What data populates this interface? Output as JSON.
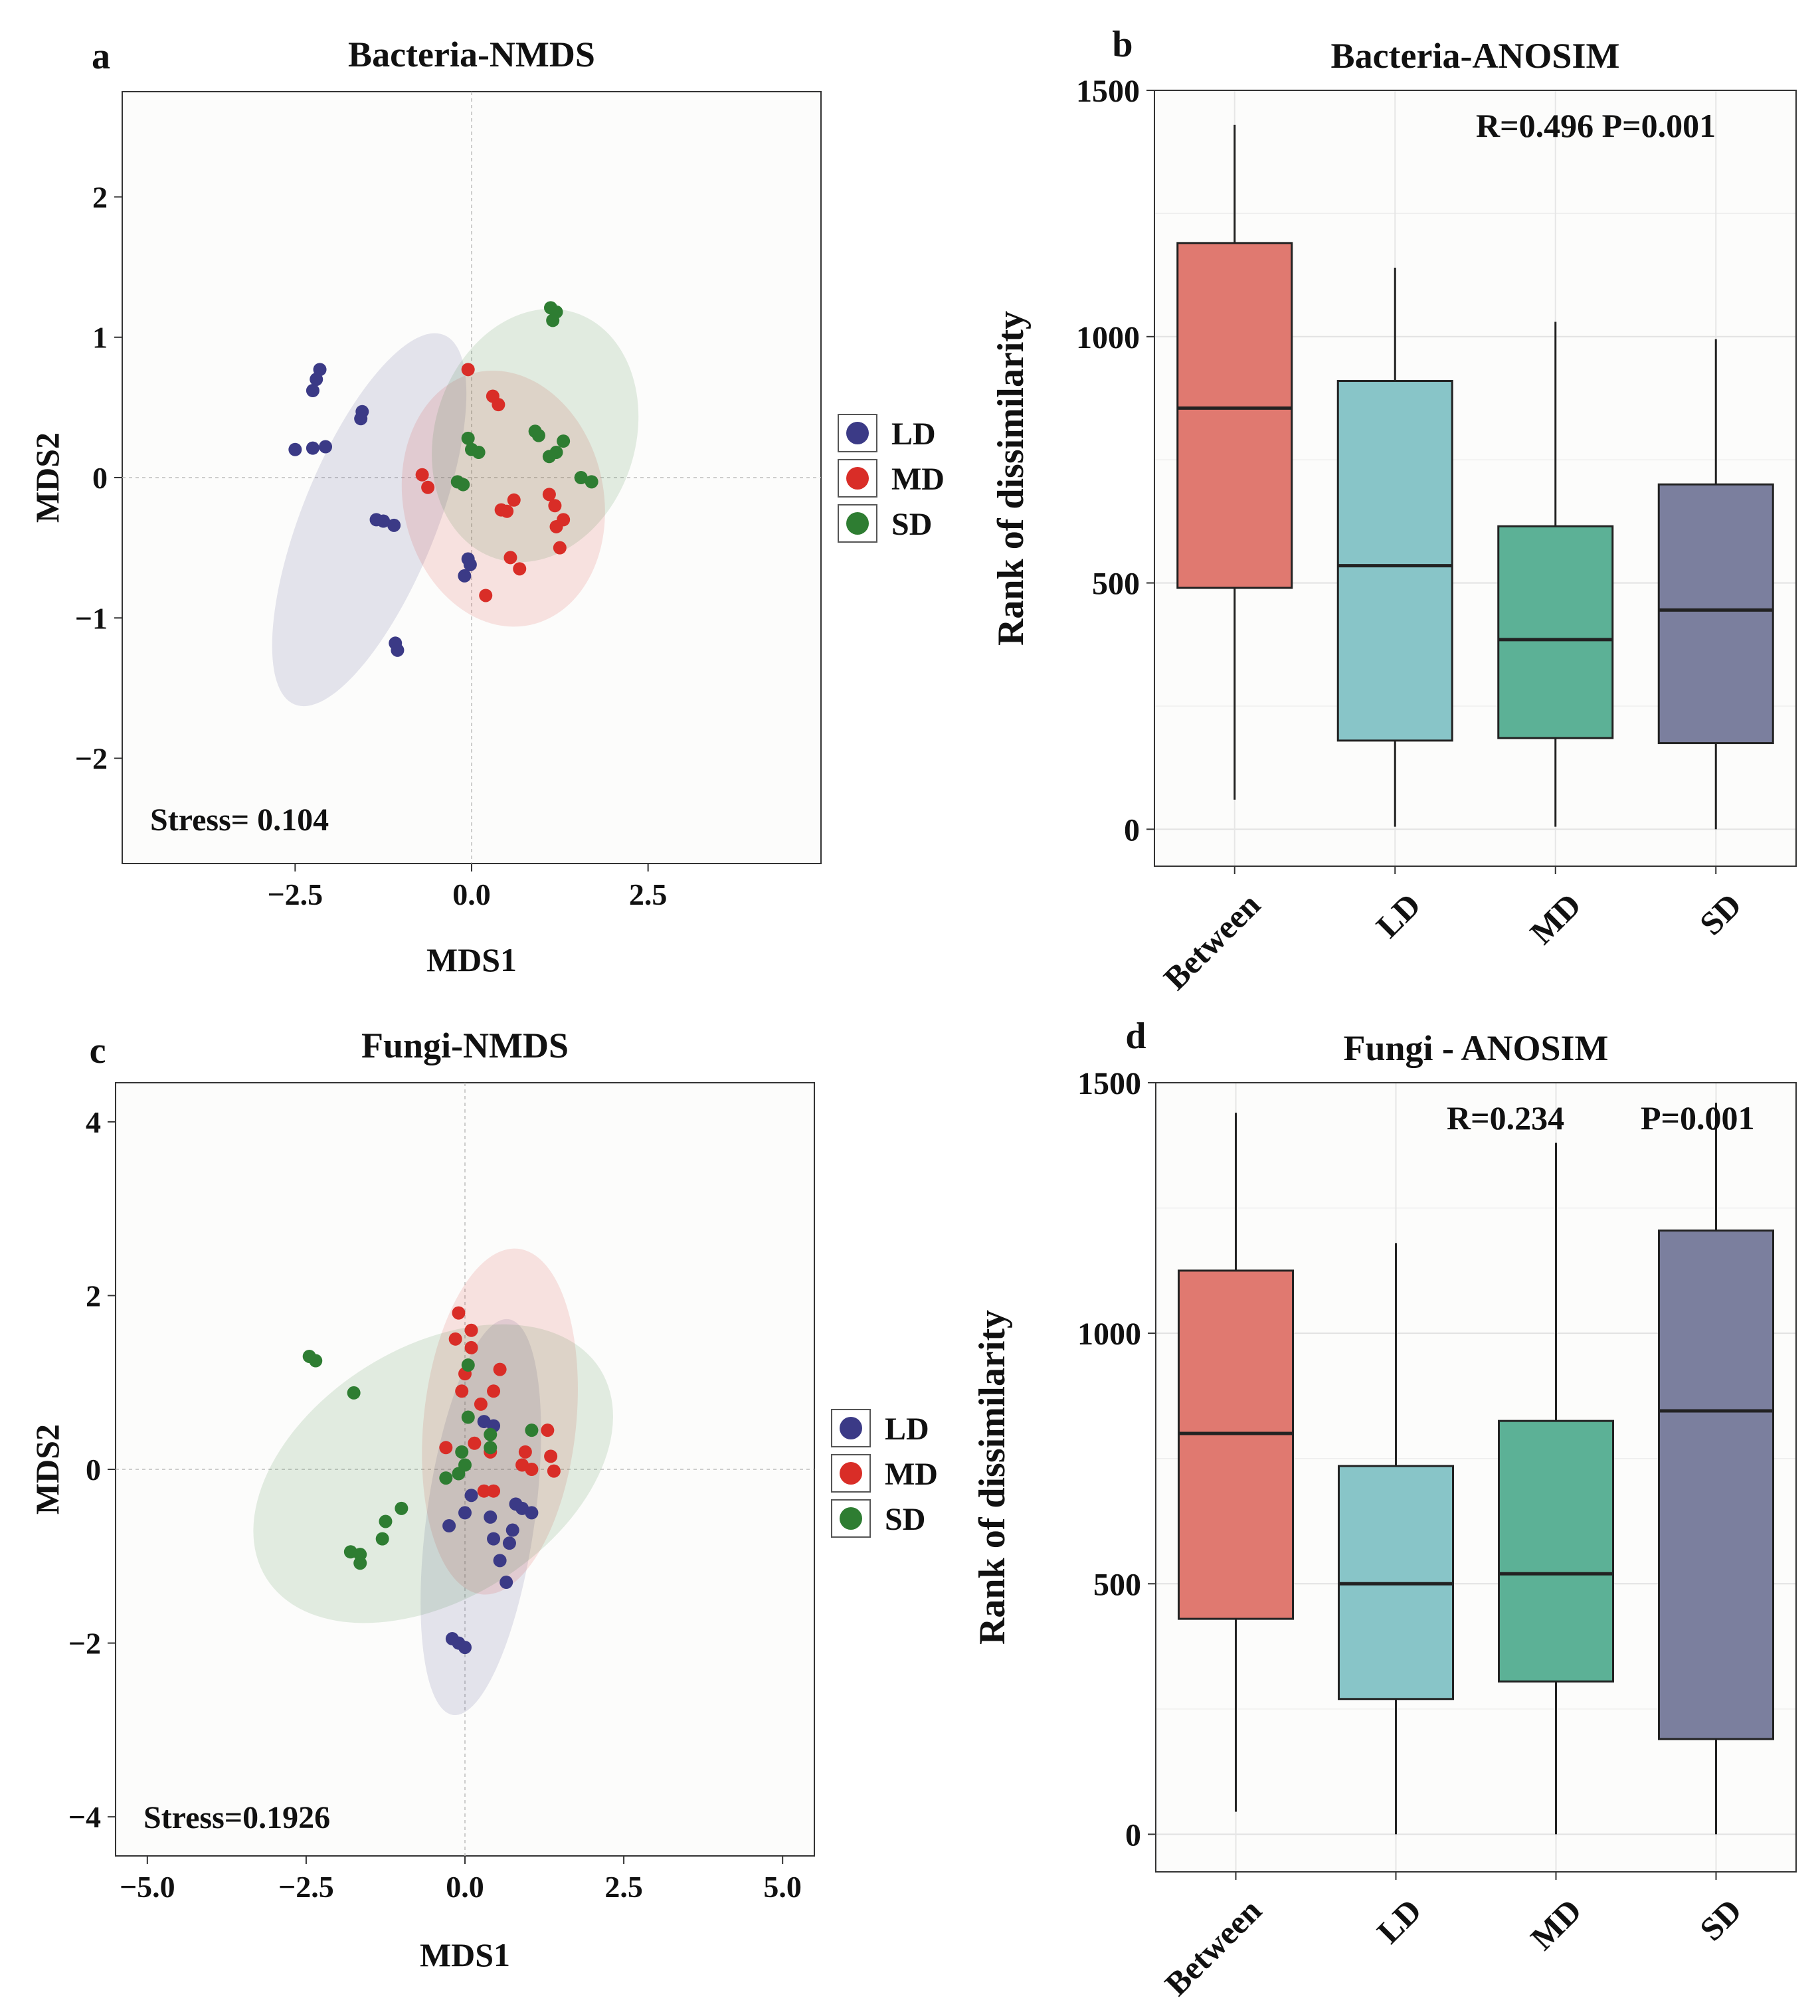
{
  "chart_data": [
    {
      "panel": "a",
      "type": "scatter",
      "title": "Bacteria-NMDS",
      "xlabel": "MDS1",
      "ylabel": "MDS2",
      "xlim": [
        -4.95,
        4.95
      ],
      "ylim": [
        -2.75,
        2.75
      ],
      "xticks": [
        "-2.5",
        "0.0",
        "2.5"
      ],
      "yticks": [
        "-2",
        "-1",
        "0",
        "1",
        "2"
      ],
      "annotation": "Stress= 0.104",
      "grid": false,
      "legend": "right",
      "series": [
        {
          "name": "LD",
          "color": "#3b3a86",
          "points": [
            [
              -2.15,
              0.77
            ],
            [
              -2.2,
              0.7
            ],
            [
              -2.25,
              0.62
            ],
            [
              -1.55,
              0.47
            ],
            [
              -1.57,
              0.42
            ],
            [
              -2.25,
              0.21
            ],
            [
              -2.5,
              0.2
            ],
            [
              -2.07,
              0.22
            ],
            [
              -1.35,
              -0.3
            ],
            [
              -1.25,
              -0.31
            ],
            [
              -1.1,
              -0.34
            ],
            [
              -1.08,
              -1.18
            ],
            [
              -1.05,
              -1.23
            ],
            [
              -0.05,
              -0.58
            ],
            [
              -0.1,
              -0.7
            ],
            [
              -0.02,
              -0.62
            ]
          ]
        },
        {
          "name": "MD",
          "color": "#d92d27",
          "points": [
            [
              -0.05,
              0.77
            ],
            [
              0.3,
              0.58
            ],
            [
              0.38,
              0.52
            ],
            [
              -0.7,
              0.02
            ],
            [
              -0.62,
              -0.07
            ],
            [
              0.42,
              -0.23
            ],
            [
              0.5,
              -0.24
            ],
            [
              0.6,
              -0.16
            ],
            [
              1.1,
              -0.12
            ],
            [
              1.18,
              -0.2
            ],
            [
              1.3,
              -0.3
            ],
            [
              1.2,
              -0.35
            ],
            [
              1.25,
              -0.5
            ],
            [
              0.55,
              -0.57
            ],
            [
              0.68,
              -0.65
            ],
            [
              0.2,
              -0.84
            ]
          ]
        },
        {
          "name": "SD",
          "color": "#2e7d32",
          "points": [
            [
              1.12,
              1.21
            ],
            [
              1.2,
              1.18
            ],
            [
              1.15,
              1.12
            ],
            [
              0.9,
              0.33
            ],
            [
              0.95,
              0.3
            ],
            [
              1.3,
              0.26
            ],
            [
              1.2,
              0.18
            ],
            [
              1.1,
              0.15
            ],
            [
              1.55,
              0.0
            ],
            [
              1.7,
              -0.03
            ],
            [
              -0.05,
              0.28
            ],
            [
              0.0,
              0.2
            ],
            [
              0.1,
              0.18
            ],
            [
              -0.2,
              -0.03
            ],
            [
              -0.12,
              -0.05
            ]
          ]
        }
      ],
      "ellipses": [
        {
          "group": "LD",
          "cx": -1.45,
          "cy": -0.3,
          "rx": 0.95,
          "ry": 1.42,
          "angle_deg": 22
        },
        {
          "group": "MD",
          "cx": 0.45,
          "cy": -0.15,
          "rx": 1.42,
          "ry": 0.92,
          "angle_deg": -12
        },
        {
          "group": "SD",
          "cx": 0.9,
          "cy": 0.3,
          "rx": 1.42,
          "ry": 0.92,
          "angle_deg": 18
        }
      ]
    },
    {
      "panel": "b",
      "type": "box",
      "title": "Bacteria-ANOSIM",
      "xlabel": "",
      "ylabel": "Rank of dissimilarity",
      "ylim": [
        -75,
        1500
      ],
      "yticks": [
        "0",
        "500",
        "1000",
        "1500"
      ],
      "annotation": "R=0.496  P=0.001",
      "grid": true,
      "categories": [
        "Between",
        "LD",
        "MD",
        "SD"
      ],
      "boxes": [
        {
          "name": "Between",
          "color": "#e07970",
          "min": 60,
          "q1": 490,
          "median": 855,
          "q3": 1190,
          "max": 1430
        },
        {
          "name": "LD",
          "color": "#88c5c8",
          "min": 5,
          "q1": 180,
          "median": 535,
          "q3": 910,
          "max": 1140
        },
        {
          "name": "MD",
          "color": "#5cb196",
          "min": 5,
          "q1": 185,
          "median": 385,
          "q3": 615,
          "max": 1030
        },
        {
          "name": "SD",
          "color": "#7b7f9e",
          "min": 0,
          "q1": 175,
          "median": 445,
          "q3": 700,
          "max": 995
        }
      ]
    },
    {
      "panel": "c",
      "type": "scatter",
      "title": "Fungi-NMDS",
      "xlabel": "MDS1",
      "ylabel": "MDS2",
      "xlim": [
        -5.5,
        5.5
      ],
      "ylim": [
        -4.45,
        4.45
      ],
      "xticks": [
        "-5.0",
        "-2.5",
        "0.0",
        "2.5",
        "5.0"
      ],
      "yticks": [
        "-4",
        "-2",
        "0",
        "2",
        "4"
      ],
      "annotation": "Stress=0.1926",
      "grid": false,
      "legend": "right",
      "series": [
        {
          "name": "LD",
          "color": "#3b3a86",
          "points": [
            [
              0.3,
              0.55
            ],
            [
              0.45,
              0.5
            ],
            [
              0.1,
              -0.3
            ],
            [
              0.0,
              -0.5
            ],
            [
              -0.25,
              -0.65
            ],
            [
              0.4,
              -0.55
            ],
            [
              0.8,
              -0.4
            ],
            [
              0.9,
              -0.45
            ],
            [
              1.05,
              -0.5
            ],
            [
              0.75,
              -0.7
            ],
            [
              0.45,
              -0.8
            ],
            [
              0.55,
              -1.05
            ],
            [
              0.7,
              -0.85
            ],
            [
              0.65,
              -1.3
            ],
            [
              -0.2,
              -1.95
            ],
            [
              -0.1,
              -2.0
            ],
            [
              0.0,
              -2.05
            ]
          ]
        },
        {
          "name": "MD",
          "color": "#d92d27",
          "points": [
            [
              -0.1,
              1.8
            ],
            [
              0.1,
              1.6
            ],
            [
              -0.15,
              1.5
            ],
            [
              0.1,
              1.4
            ],
            [
              0.55,
              1.15
            ],
            [
              0.0,
              1.1
            ],
            [
              0.45,
              0.9
            ],
            [
              -0.05,
              0.9
            ],
            [
              0.25,
              0.75
            ],
            [
              0.15,
              0.3
            ],
            [
              -0.3,
              0.25
            ],
            [
              0.4,
              0.2
            ],
            [
              0.95,
              0.2
            ],
            [
              1.3,
              0.45
            ],
            [
              1.35,
              0.15
            ],
            [
              0.9,
              0.05
            ],
            [
              1.05,
              0.0
            ],
            [
              1.4,
              -0.02
            ],
            [
              0.3,
              -0.25
            ],
            [
              0.45,
              -0.25
            ]
          ]
        },
        {
          "name": "SD",
          "color": "#2e7d32",
          "points": [
            [
              -2.45,
              1.3
            ],
            [
              -2.35,
              1.25
            ],
            [
              -1.75,
              0.88
            ],
            [
              -1.0,
              -0.45
            ],
            [
              -1.25,
              -0.6
            ],
            [
              -1.3,
              -0.8
            ],
            [
              -1.8,
              -0.95
            ],
            [
              -1.65,
              -0.98
            ],
            [
              -1.65,
              -1.08
            ],
            [
              0.05,
              1.2
            ],
            [
              0.05,
              0.6
            ],
            [
              0.4,
              0.4
            ],
            [
              -0.05,
              0.2
            ],
            [
              0.0,
              0.05
            ],
            [
              -0.1,
              -0.05
            ],
            [
              -0.3,
              -0.1
            ],
            [
              0.4,
              0.25
            ],
            [
              1.05,
              0.45
            ]
          ]
        }
      ],
      "ellipses": [
        {
          "group": "LD",
          "cx": 0.25,
          "cy": -0.55,
          "rx": 0.85,
          "ry": 2.3,
          "angle_deg": 8
        },
        {
          "group": "MD",
          "cx": 0.55,
          "cy": 0.55,
          "rx": 1.2,
          "ry": 2.0,
          "angle_deg": 6
        },
        {
          "group": "SD",
          "cx": -0.5,
          "cy": -0.05,
          "rx": 3.1,
          "ry": 1.45,
          "angle_deg": -32
        }
      ]
    },
    {
      "panel": "d",
      "type": "box",
      "title": "Fungi - ANOSIM",
      "xlabel": "",
      "ylabel": "Rank of dissimilarity",
      "ylim": [
        -75,
        1500
      ],
      "yticks": [
        "0",
        "500",
        "1000",
        "1500"
      ],
      "annotation": [
        "R=0.234",
        "P=0.001"
      ],
      "grid": true,
      "categories": [
        "Between",
        "LD",
        "MD",
        "SD"
      ],
      "boxes": [
        {
          "name": "Between",
          "color": "#e07970",
          "min": 45,
          "q1": 430,
          "median": 800,
          "q3": 1125,
          "max": 1440
        },
        {
          "name": "LD",
          "color": "#88c5c8",
          "min": 0,
          "q1": 270,
          "median": 500,
          "q3": 735,
          "max": 1180
        },
        {
          "name": "MD",
          "color": "#5cb196",
          "min": 0,
          "q1": 305,
          "median": 520,
          "q3": 825,
          "max": 1380
        },
        {
          "name": "SD",
          "color": "#7b7f9e",
          "min": 0,
          "q1": 190,
          "median": 845,
          "q3": 1205,
          "max": 1460
        }
      ]
    }
  ]
}
